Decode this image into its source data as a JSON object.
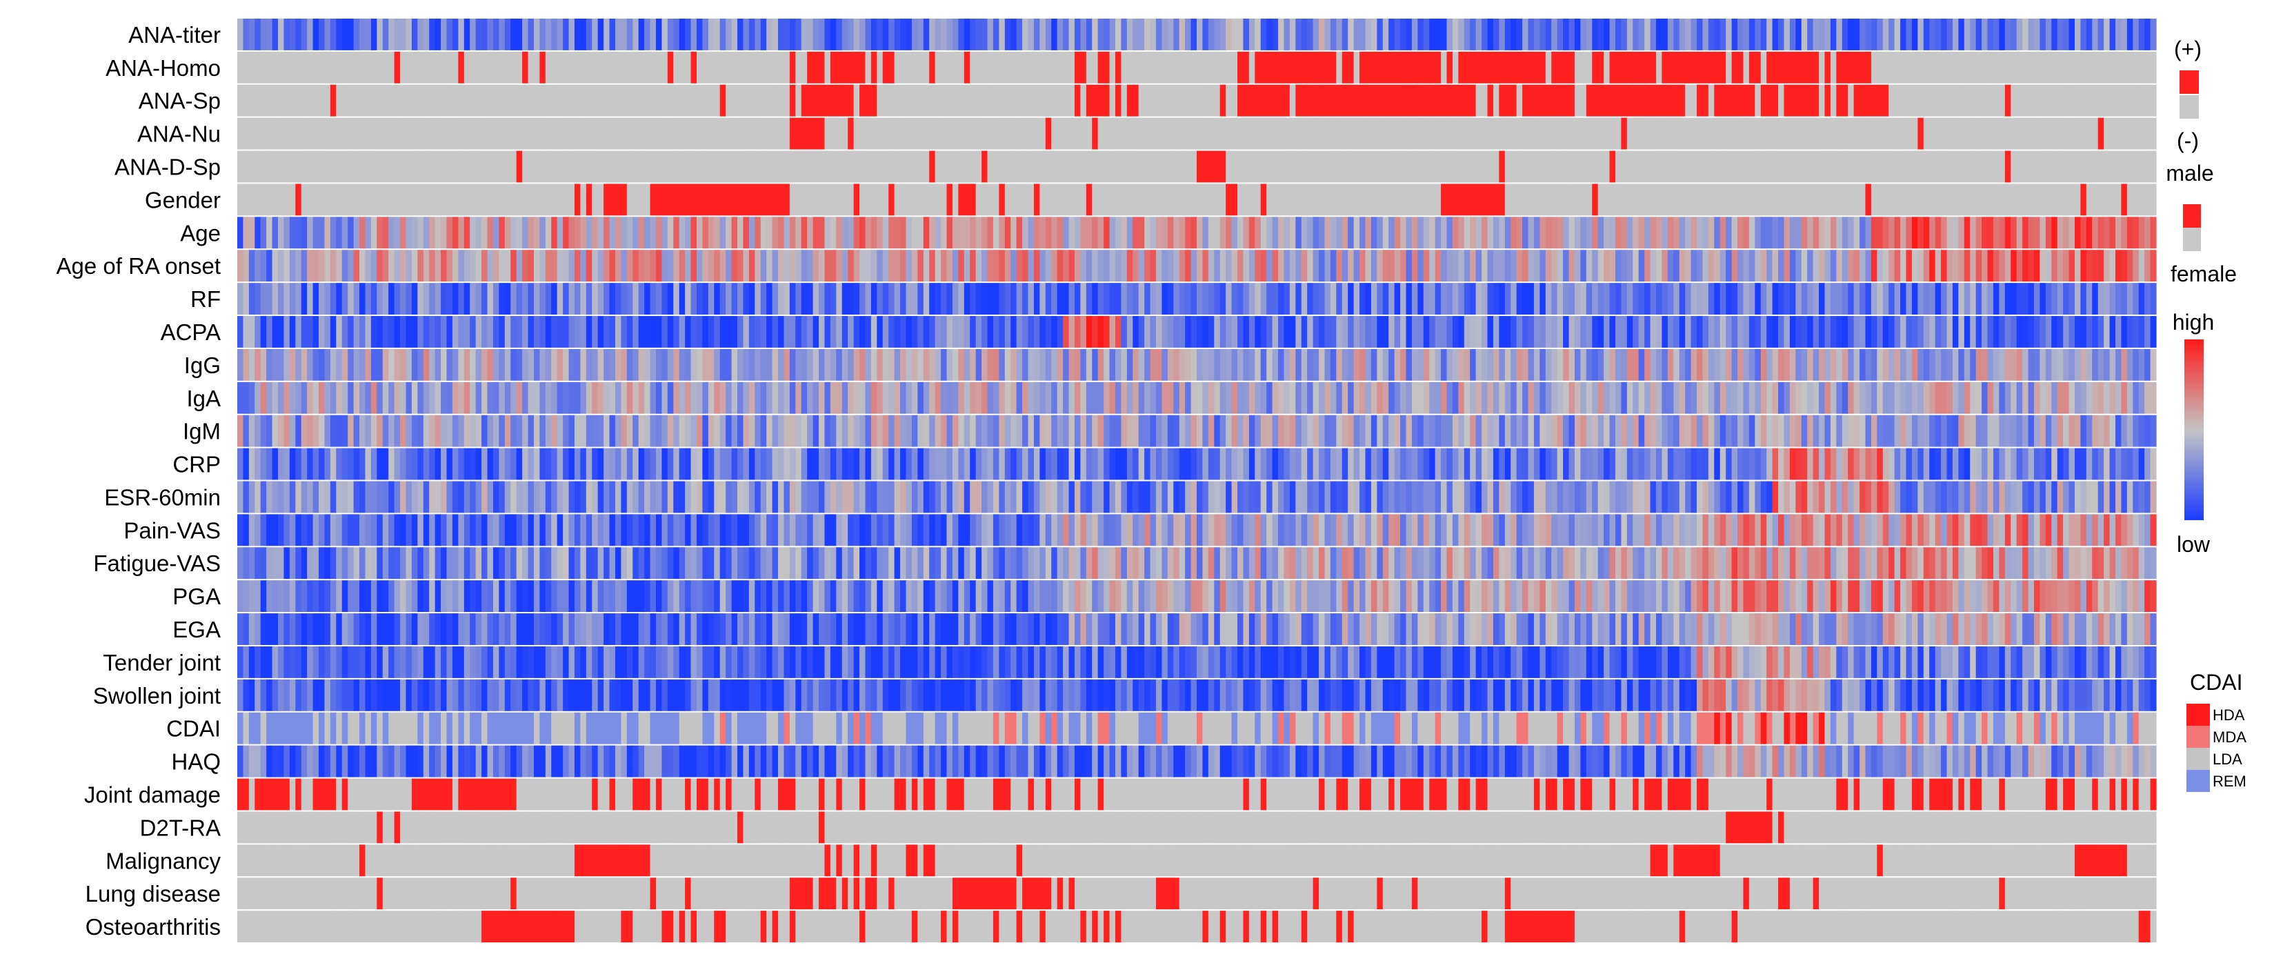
{
  "chart_data": {
    "type": "heatmap",
    "rows": [
      {
        "label": "ANA-titer",
        "kind": "continuous"
      },
      {
        "label": "ANA-Homo",
        "kind": "binary"
      },
      {
        "label": "ANA-Sp",
        "kind": "binary"
      },
      {
        "label": "ANA-Nu",
        "kind": "binary"
      },
      {
        "label": "ANA-D-Sp",
        "kind": "binary"
      },
      {
        "label": "Gender",
        "kind": "binary"
      },
      {
        "label": "Age",
        "kind": "continuous"
      },
      {
        "label": "Age of RA onset",
        "kind": "continuous"
      },
      {
        "label": "RF",
        "kind": "continuous"
      },
      {
        "label": "ACPA",
        "kind": "continuous"
      },
      {
        "label": "IgG",
        "kind": "continuous"
      },
      {
        "label": "IgA",
        "kind": "continuous"
      },
      {
        "label": "IgM",
        "kind": "continuous"
      },
      {
        "label": "CRP",
        "kind": "continuous"
      },
      {
        "label": "ESR-60min",
        "kind": "continuous"
      },
      {
        "label": "Pain-VAS",
        "kind": "continuous"
      },
      {
        "label": "Fatigue-VAS",
        "kind": "continuous"
      },
      {
        "label": "PGA",
        "kind": "continuous"
      },
      {
        "label": "EGA",
        "kind": "continuous"
      },
      {
        "label": "Tender joint",
        "kind": "continuous"
      },
      {
        "label": "Swollen joint",
        "kind": "continuous"
      },
      {
        "label": "CDAI",
        "kind": "categorical"
      },
      {
        "label": "HAQ",
        "kind": "continuous"
      },
      {
        "label": "Joint damage",
        "kind": "binary"
      },
      {
        "label": "D2T-RA",
        "kind": "binary"
      },
      {
        "label": "Malignancy",
        "kind": "binary"
      },
      {
        "label": "Lung disease",
        "kind": "binary"
      },
      {
        "label": "Osteoarthritis",
        "kind": "binary"
      }
    ],
    "n_columns": 330,
    "binary_legend": {
      "top": "(+)",
      "bottom": "(-)",
      "colors": [
        "#ff2020",
        "#c8c8c8"
      ]
    },
    "gender_legend": {
      "top": "male",
      "bottom": "female",
      "colors": [
        "#ff2020",
        "#c8c8c8"
      ]
    },
    "continuous_legend": {
      "top": "high",
      "bottom": "low",
      "colors": [
        "#ff1a1a",
        "#c4c4c4",
        "#1a3cff"
      ]
    },
    "cdai_legend": {
      "title": "CDAI",
      "items": [
        {
          "label": "HDA",
          "color": "#ff1a1a"
        },
        {
          "label": "MDA",
          "color": "#f47777"
        },
        {
          "label": "LDA",
          "color": "#c4c4c4"
        },
        {
          "label": "REM",
          "color": "#7b8fe6"
        }
      ]
    },
    "colors": {
      "high": "#ff1a1a",
      "mid": "#c4c4c4",
      "low": "#1a3cff",
      "positive": "#ff2020",
      "negative": "#c8c8c8"
    }
  }
}
